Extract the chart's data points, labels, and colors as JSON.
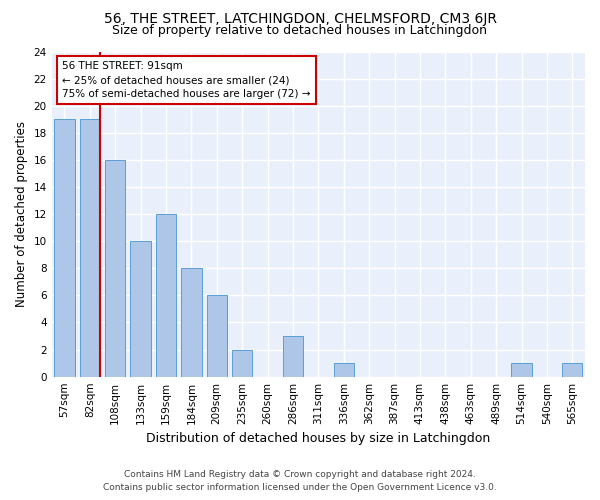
{
  "title_line1": "56, THE STREET, LATCHINGDON, CHELMSFORD, CM3 6JR",
  "title_line2": "Size of property relative to detached houses in Latchingdon",
  "xlabel": "Distribution of detached houses by size in Latchingdon",
  "ylabel": "Number of detached properties",
  "footer_line1": "Contains HM Land Registry data © Crown copyright and database right 2024.",
  "footer_line2": "Contains public sector information licensed under the Open Government Licence v3.0.",
  "categories": [
    "57sqm",
    "82sqm",
    "108sqm",
    "133sqm",
    "159sqm",
    "184sqm",
    "209sqm",
    "235sqm",
    "260sqm",
    "286sqm",
    "311sqm",
    "336sqm",
    "362sqm",
    "387sqm",
    "413sqm",
    "438sqm",
    "463sqm",
    "489sqm",
    "514sqm",
    "540sqm",
    "565sqm"
  ],
  "values": [
    19,
    19,
    16,
    10,
    12,
    8,
    6,
    2,
    0,
    3,
    0,
    1,
    0,
    0,
    0,
    0,
    0,
    0,
    1,
    0,
    1
  ],
  "bar_color": "#aec6e8",
  "bar_edge_color": "#5a9fd4",
  "vline_x_index": 1.4,
  "vline_color": "#cc0000",
  "annotation_text": "56 THE STREET: 91sqm\n← 25% of detached houses are smaller (24)\n75% of semi-detached houses are larger (72) →",
  "annotation_box_color": "#ffffff",
  "annotation_box_edge": "#cc0000",
  "ylim": [
    0,
    24
  ],
  "yticks": [
    0,
    2,
    4,
    6,
    8,
    10,
    12,
    14,
    16,
    18,
    20,
    22,
    24
  ],
  "bg_color": "#eaf0fb",
  "grid_color": "#ffffff",
  "title1_fontsize": 10,
  "title2_fontsize": 9,
  "xlabel_fontsize": 9,
  "ylabel_fontsize": 8.5,
  "tick_fontsize": 7.5,
  "footer_fontsize": 6.5
}
